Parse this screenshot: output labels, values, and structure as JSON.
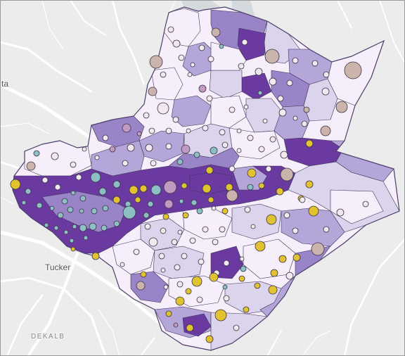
{
  "map": {
    "place_labels": [
      {
        "id": "atlanta",
        "text": "ta"
      },
      {
        "id": "tucker",
        "text": "Tucker"
      },
      {
        "id": "dekalb",
        "text": "DEKALB"
      }
    ],
    "colors": {
      "background": "#ececec",
      "roads": "#ffffff",
      "water": "#d4d9dd",
      "county_outline": "#4a3f6b",
      "tract_border": "#3d3358",
      "choropleth_classes": [
        "#f6eefa",
        "#dcd3ec",
        "#b4a6d8",
        "#9a84c8",
        "#6a3aa0"
      ],
      "symbol_teal": "#8cc0c4",
      "symbol_gold": "#e1c330",
      "symbol_mauve": "#c09ac0",
      "symbol_taupe": "#cbb4ac"
    }
  }
}
